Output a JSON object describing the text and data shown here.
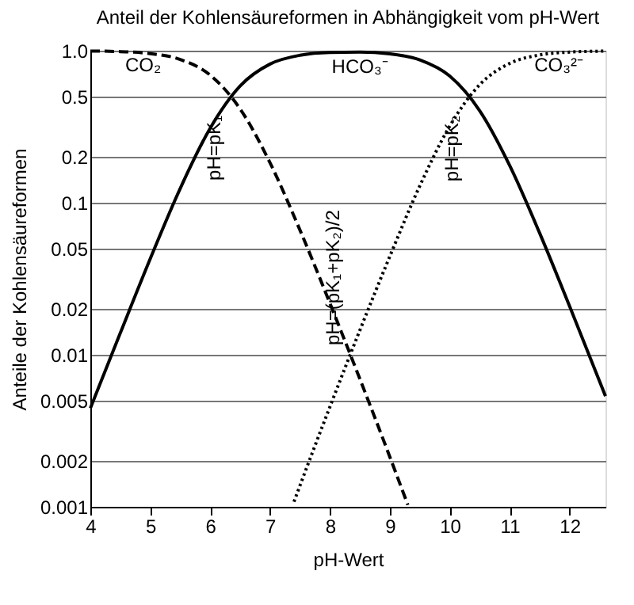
{
  "chart_data": {
    "type": "line",
    "title": "Anteil der Kohlensäureformen in Abhängigkeit vom pH-Wert",
    "xlabel": "pH-Wert",
    "ylabel": "Anteile der Kohlensäureformen",
    "xlim": [
      4,
      12.6
    ],
    "xticks": [
      4,
      5,
      6,
      7,
      8,
      9,
      10,
      11,
      12
    ],
    "ylim": [
      0.001,
      1
    ],
    "yticks": [
      0.001,
      0.002,
      0.005,
      0.01,
      0.02,
      0.05,
      0.1,
      0.2,
      0.5,
      {
        "value": 1,
        "label": "1.0"
      }
    ],
    "log": "y",
    "grid": "y",
    "legend": false,
    "marker": "none",
    "series": [
      {
        "name": "CO₂",
        "color": "#000000",
        "line_style": "dashed",
        "x": [
          4,
          4.5,
          5,
          5.5,
          6,
          6.5,
          7,
          7.5,
          8,
          8.5,
          9,
          9.3
        ],
        "values": [
          0.9955,
          0.986,
          0.957,
          0.876,
          0.691,
          0.414,
          0.183,
          0.066,
          0.0218,
          0.00693,
          0.00213,
          0.00103
        ]
      },
      {
        "name": "HCO₃⁻",
        "color": "#000000",
        "line_style": "solid",
        "x": [
          4,
          4.5,
          5,
          5.5,
          6,
          6.5,
          7,
          7.5,
          8,
          8.5,
          9,
          9.5,
          10,
          10.5,
          11,
          11.5,
          12,
          12.5,
          12.6
        ],
        "values": [
          0.00445,
          0.0139,
          0.0428,
          0.124,
          0.309,
          0.586,
          0.817,
          0.933,
          0.973,
          0.978,
          0.953,
          0.87,
          0.681,
          0.403,
          0.176,
          0.0633,
          0.0209,
          0.00672,
          0.00534
        ]
      },
      {
        "name": "CO₃²⁻",
        "color": "#000000",
        "line_style": "dotted",
        "x": [
          7.4,
          7.5,
          8,
          8.5,
          9,
          9.5,
          10,
          10.5,
          11,
          11.5,
          12,
          12.5,
          12.6
        ],
        "values": [
          0.00108,
          0.00138,
          0.00455,
          0.0145,
          0.0444,
          0.129,
          0.319,
          0.597,
          0.824,
          0.937,
          0.979,
          0.993,
          0.995
        ]
      }
    ],
    "annotations": [
      {
        "text": "pH=pK₁",
        "x": 6.35,
        "y": 0.5
      },
      {
        "text": "pH=(pK₁+pK₂)/2",
        "x": 8.34,
        "y": 0.01
      },
      {
        "text": "pH=pK₂",
        "x": 10.33,
        "y": 0.5
      }
    ]
  }
}
